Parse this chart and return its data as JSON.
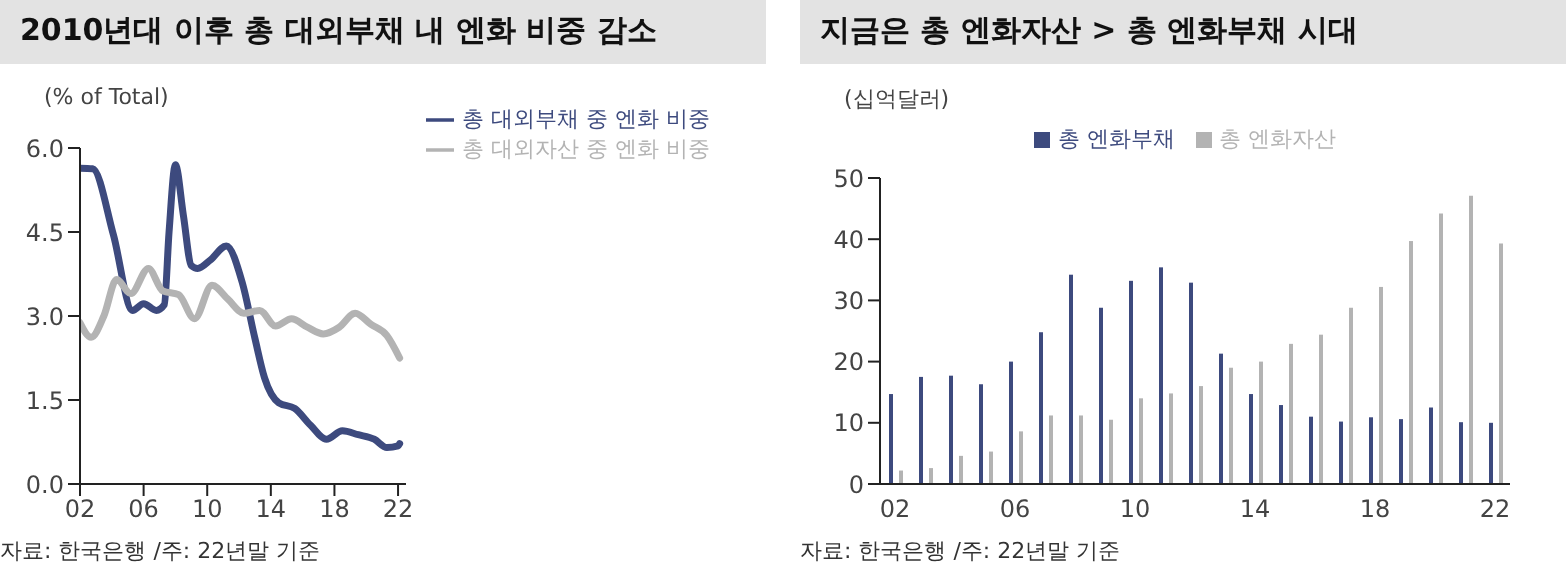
{
  "chart_data": [
    {
      "type": "line",
      "title": "2010년대 이후 총 대외부채 내 엔화 비중 감소",
      "ylabel": "(% of Total)",
      "xlim": [
        2002,
        2022.5
      ],
      "xticks": [
        {
          "value": 2002,
          "label": "02"
        },
        {
          "value": 2006,
          "label": "06"
        },
        {
          "value": 2010,
          "label": "10"
        },
        {
          "value": 2014,
          "label": "14"
        },
        {
          "value": 2018,
          "label": "18"
        },
        {
          "value": 2022,
          "label": "22"
        }
      ],
      "ylim": [
        0,
        6
      ],
      "yticks": [
        {
          "value": 0,
          "label": "0.0"
        },
        {
          "value": 1.5,
          "label": "1.5"
        },
        {
          "value": 3,
          "label": "3.0"
        },
        {
          "value": 4.5,
          "label": "4.5"
        },
        {
          "value": 6,
          "label": "6.0"
        }
      ],
      "grid": false,
      "legend": "top right",
      "marker": "none",
      "line_style": "solid",
      "annotations": [
        "자료: 한국은행 /주: 22년말 기준"
      ],
      "series": [
        {
          "name": "총 대외부채 중 엔화 비중",
          "color": "#3d4a7e",
          "x": [
            2002,
            2002.8,
            2004.1,
            2005.3,
            2006,
            2006.8,
            2007.3,
            2007.6,
            2008,
            2008.5,
            2009,
            2009.4,
            2010.2,
            2011.2,
            2012.2,
            2013,
            2013.6,
            2014.5,
            2015.5,
            2016.5,
            2017.5,
            2018.5,
            2019.5,
            2020.5,
            2021.3,
            2022,
            2022.1
          ],
          "values": [
            5.64,
            5.63,
            4.45,
            3.1,
            3.22,
            3.1,
            3.2,
            4.5,
            5.7,
            4.8,
            3.9,
            3.85,
            4.0,
            4.25,
            3.6,
            2.6,
            1.9,
            1.45,
            1.35,
            1.05,
            0.8,
            0.95,
            0.88,
            0.8,
            0.65,
            0.68,
            0.72
          ]
        },
        {
          "name": "총 대외자산 중 엔화 비중",
          "color": "#b3b3b3",
          "x": [
            2002,
            2002.7,
            2003.5,
            2004.3,
            2005.2,
            2006.3,
            2007.2,
            2008.2,
            2009.2,
            2010.3,
            2011.3,
            2012.3,
            2013.3,
            2014.3,
            2015.3,
            2016.3,
            2017.3,
            2018.3,
            2019.3,
            2020.3,
            2021.3,
            2022.1
          ],
          "values": [
            2.88,
            2.62,
            3.0,
            3.65,
            3.4,
            3.85,
            3.45,
            3.38,
            2.95,
            3.55,
            3.3,
            3.05,
            3.1,
            2.82,
            2.95,
            2.8,
            2.68,
            2.8,
            3.05,
            2.85,
            2.65,
            2.25
          ]
        }
      ]
    },
    {
      "type": "bar",
      "title": "지금은 총 엔화자산 > 총 엔화부채 시대",
      "ylabel": "(십억달러)",
      "categories": [
        "02",
        null,
        null,
        null,
        "06",
        null,
        null,
        null,
        "10",
        null,
        null,
        null,
        "14",
        null,
        null,
        null,
        "18",
        null,
        null,
        null,
        "22"
      ],
      "ylim": [
        0,
        50
      ],
      "yticks": [
        0,
        10,
        20,
        30,
        40,
        50
      ],
      "grid": false,
      "legend": "top",
      "annotations": [
        "자료: 한국은행 /주: 22년말 기준"
      ],
      "series": [
        {
          "name": "총 엔화부채",
          "color": "#3d4a7e",
          "values": [
            14.7,
            17.5,
            17.7,
            16.3,
            20,
            24.8,
            34.2,
            28.8,
            33.2,
            35.4,
            32.9,
            21.3,
            14.7,
            12.9,
            11,
            10.2,
            10.9,
            10.6,
            12.5,
            10.1,
            10
          ]
        },
        {
          "name": "총 엔화자산",
          "color": "#b3b3b3",
          "values": [
            2.2,
            2.6,
            4.6,
            5.3,
            8.6,
            11.2,
            11.2,
            10.5,
            14,
            14.8,
            16,
            19,
            20,
            22.9,
            24.4,
            28.8,
            32.2,
            39.7,
            44.2,
            47.1,
            39.3
          ]
        }
      ]
    }
  ]
}
